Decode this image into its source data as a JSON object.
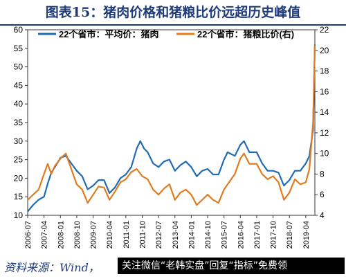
{
  "title": "图表15：猪肉价格和猪粮比价远超历史峰值",
  "source": "资料来源：Wind，",
  "watermark": "关注微信“老韩实盘”回复“指标”免费领",
  "colors": {
    "title": "#1f3b78",
    "series1": "#1f6cb5",
    "series2": "#e07b1f",
    "axis": "#333333"
  },
  "chart_data": {
    "type": "line",
    "x_ticks": [
      "2006-07",
      "2007-04",
      "2008-01",
      "2008-10",
      "2009-07",
      "2010-04",
      "2011-01",
      "2011-10",
      "2012-07",
      "2013-04",
      "2014-01",
      "2014-10",
      "2015-07",
      "2016-04",
      "2017-01",
      "2017-10",
      "2018-07",
      "2019-04"
    ],
    "x_range": [
      "2006-07",
      "2019-09"
    ],
    "y_left": {
      "ticks": [
        "10",
        "15",
        "20",
        "25",
        "30",
        "35",
        "40",
        "45",
        "50",
        "55",
        "60"
      ],
      "range": [
        10,
        60
      ]
    },
    "y_right": {
      "ticks": [
        "4",
        "6",
        "8",
        "10",
        "12",
        "14",
        "16",
        "18",
        "20",
        "22"
      ],
      "range": [
        4,
        22
      ]
    },
    "legend_position": "top",
    "series": [
      {
        "name": "22个省市：平均价：猪肉",
        "axis": "left",
        "color": "#1f6cb5",
        "points": [
          [
            "2006-07",
            11
          ],
          [
            "2006-10",
            12.8
          ],
          [
            "2007-01",
            14.2
          ],
          [
            "2007-04",
            15
          ],
          [
            "2007-06",
            18.5
          ],
          [
            "2007-08",
            21.5
          ],
          [
            "2007-10",
            23
          ],
          [
            "2008-01",
            25.5
          ],
          [
            "2008-04",
            26
          ],
          [
            "2008-07",
            24
          ],
          [
            "2008-10",
            22
          ],
          [
            "2009-01",
            20.5
          ],
          [
            "2009-04",
            17
          ],
          [
            "2009-07",
            18
          ],
          [
            "2009-10",
            19.5
          ],
          [
            "2010-01",
            19.5
          ],
          [
            "2010-04",
            16
          ],
          [
            "2010-07",
            17.5
          ],
          [
            "2010-10",
            20
          ],
          [
            "2011-01",
            21
          ],
          [
            "2011-04",
            23
          ],
          [
            "2011-07",
            28
          ],
          [
            "2011-09",
            30
          ],
          [
            "2011-11",
            28
          ],
          [
            "2012-01",
            27
          ],
          [
            "2012-04",
            24
          ],
          [
            "2012-07",
            23
          ],
          [
            "2012-10",
            24.5
          ],
          [
            "2013-01",
            25
          ],
          [
            "2013-04",
            22
          ],
          [
            "2013-07",
            23.5
          ],
          [
            "2013-10",
            24.5
          ],
          [
            "2014-01",
            23
          ],
          [
            "2014-04",
            20.5
          ],
          [
            "2014-07",
            22
          ],
          [
            "2014-10",
            22.5
          ],
          [
            "2015-01",
            21
          ],
          [
            "2015-04",
            21
          ],
          [
            "2015-07",
            25
          ],
          [
            "2015-09",
            27
          ],
          [
            "2016-01",
            26
          ],
          [
            "2016-04",
            29
          ],
          [
            "2016-06",
            30
          ],
          [
            "2016-09",
            27
          ],
          [
            "2017-01",
            27
          ],
          [
            "2017-04",
            24
          ],
          [
            "2017-07",
            22
          ],
          [
            "2017-10",
            22
          ],
          [
            "2018-01",
            21.5
          ],
          [
            "2018-04",
            18
          ],
          [
            "2018-07",
            19.5
          ],
          [
            "2018-10",
            22
          ],
          [
            "2019-01",
            22
          ],
          [
            "2019-04",
            24
          ],
          [
            "2019-06",
            26
          ],
          [
            "2019-08",
            33
          ],
          [
            "2019-09",
            56
          ]
        ]
      },
      {
        "name": "22个省市：猪粮比价(右)",
        "axis": "right",
        "color": "#e07b1f",
        "points": [
          [
            "2006-07",
            5.5
          ],
          [
            "2006-10",
            6
          ],
          [
            "2007-01",
            6.5
          ],
          [
            "2007-04",
            8
          ],
          [
            "2007-06",
            9
          ],
          [
            "2007-08",
            8
          ],
          [
            "2007-10",
            8.8
          ],
          [
            "2008-01",
            9.5
          ],
          [
            "2008-04",
            10
          ],
          [
            "2008-07",
            8.5
          ],
          [
            "2008-10",
            7
          ],
          [
            "2009-01",
            6.5
          ],
          [
            "2009-04",
            5.2
          ],
          [
            "2009-07",
            6
          ],
          [
            "2009-10",
            6.8
          ],
          [
            "2010-01",
            6.7
          ],
          [
            "2010-04",
            5.5
          ],
          [
            "2010-07",
            6.3
          ],
          [
            "2010-10",
            7.2
          ],
          [
            "2011-01",
            7.5
          ],
          [
            "2011-04",
            8.2
          ],
          [
            "2011-07",
            8.5
          ],
          [
            "2011-10",
            7.8
          ],
          [
            "2012-01",
            7.5
          ],
          [
            "2012-04",
            6.5
          ],
          [
            "2012-07",
            6
          ],
          [
            "2012-10",
            6.6
          ],
          [
            "2013-01",
            7
          ],
          [
            "2013-04",
            5.5
          ],
          [
            "2013-07",
            6.2
          ],
          [
            "2013-10",
            6.5
          ],
          [
            "2014-01",
            6
          ],
          [
            "2014-04",
            5
          ],
          [
            "2014-07",
            5.5
          ],
          [
            "2014-10",
            6
          ],
          [
            "2015-01",
            5.5
          ],
          [
            "2015-04",
            5.2
          ],
          [
            "2015-07",
            6.5
          ],
          [
            "2015-09",
            7
          ],
          [
            "2016-01",
            8
          ],
          [
            "2016-04",
            9.5
          ],
          [
            "2016-06",
            10
          ],
          [
            "2016-09",
            9
          ],
          [
            "2017-01",
            9
          ],
          [
            "2017-04",
            8
          ],
          [
            "2017-07",
            7.5
          ],
          [
            "2017-10",
            7.8
          ],
          [
            "2018-01",
            7.2
          ],
          [
            "2018-04",
            5.5
          ],
          [
            "2018-07",
            6.2
          ],
          [
            "2018-10",
            7.5
          ],
          [
            "2019-01",
            7
          ],
          [
            "2019-04",
            7.2
          ],
          [
            "2019-06",
            8.5
          ],
          [
            "2019-08",
            13
          ],
          [
            "2019-09",
            20.5
          ]
        ]
      }
    ]
  }
}
